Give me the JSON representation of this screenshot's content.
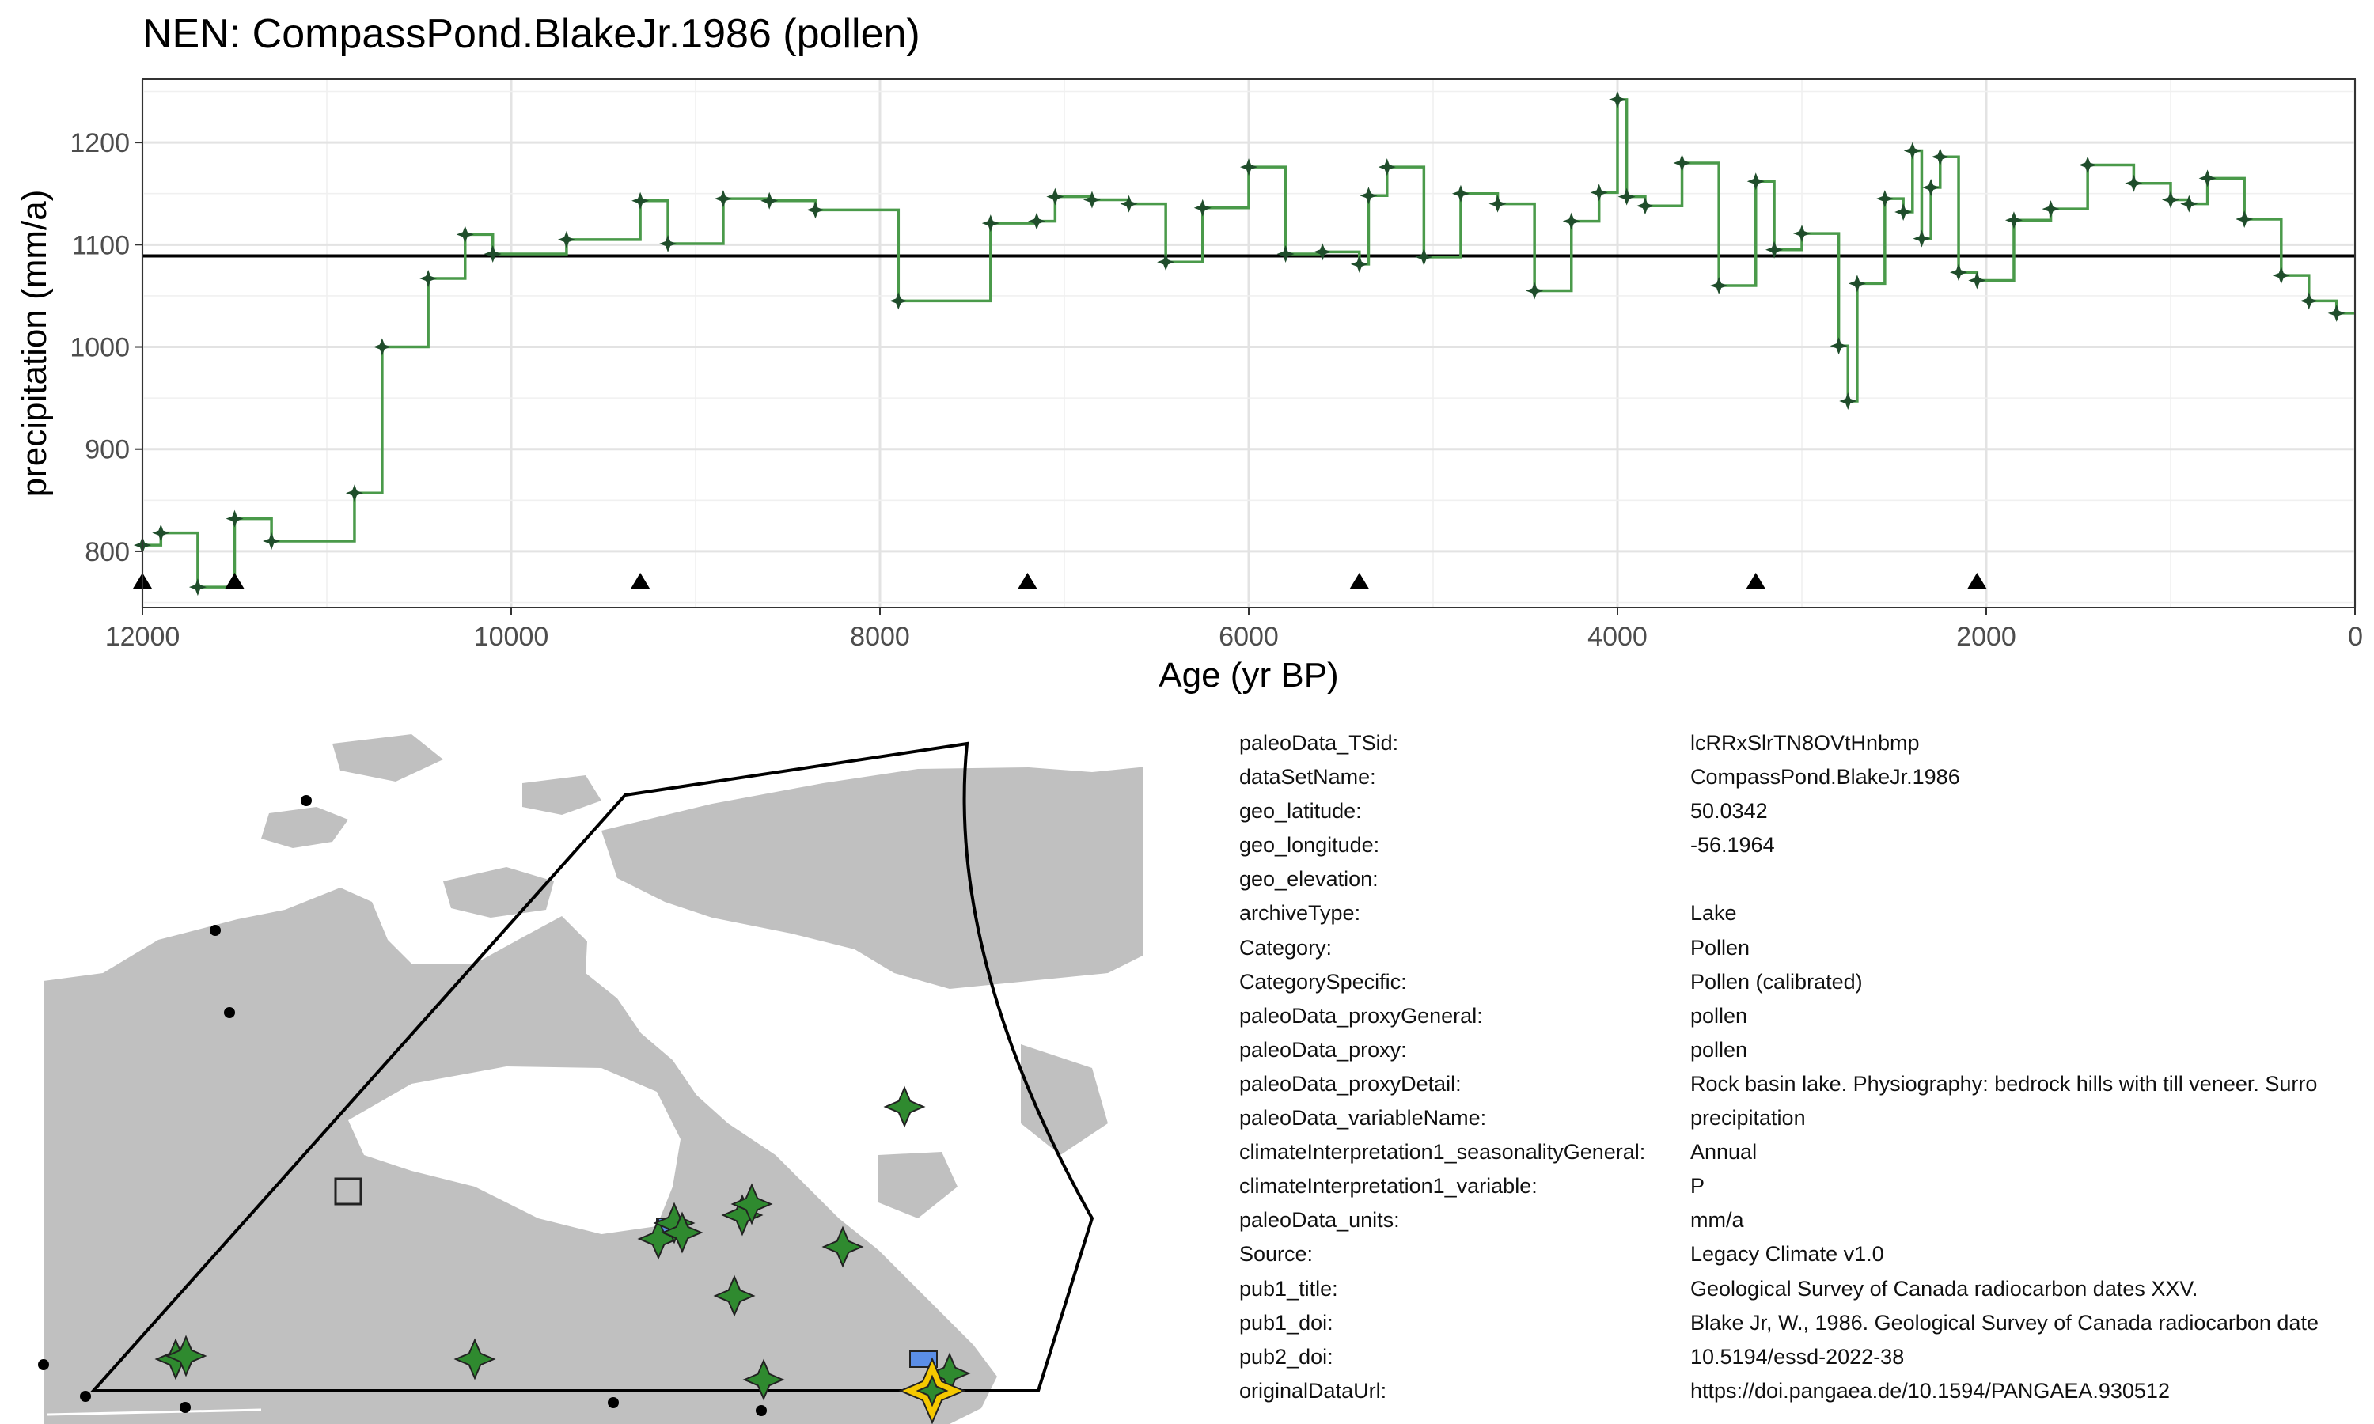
{
  "chart_data": {
    "type": "line",
    "title": "NEN: CompassPond.BlakeJr.1986 (pollen)",
    "xlabel": "Age (yr BP)",
    "ylabel": "precipitation (mm/a)",
    "xlim": [
      12000,
      0
    ],
    "ylim": [
      745,
      1262
    ],
    "x_reversed": true,
    "x_ticks": [
      12000,
      10000,
      8000,
      6000,
      4000,
      2000,
      0
    ],
    "y_ticks": [
      800,
      900,
      1000,
      1100,
      1200
    ],
    "grid": true,
    "step": true,
    "reference_line": 1089,
    "series": [
      {
        "color": "#4a9a4a",
        "marker_color": "#1f4d2b",
        "x": [
          12000,
          11900,
          11700,
          11500,
          11300,
          10850,
          10700,
          10450,
          10250,
          10100,
          9700,
          9300,
          9150,
          8850,
          8600,
          8350,
          7900,
          7400,
          7150,
          7050,
          6850,
          6650,
          6450,
          6250,
          6000,
          5800,
          5600,
          5400,
          5350,
          5250,
          5050,
          4850,
          4650,
          4450,
          4250,
          4100,
          4000,
          3950,
          3850,
          3650,
          3450,
          3250,
          3150,
          3000,
          2800,
          2750,
          2700,
          2550,
          2450,
          2400,
          2350,
          2300,
          2250,
          2150,
          2050,
          1850,
          1650,
          1450,
          1200,
          1000,
          900,
          800,
          600,
          400,
          250,
          100,
          0
        ],
        "y": [
          806,
          818,
          765,
          832,
          810,
          857,
          1000,
          1067,
          1110,
          1091,
          1105,
          1143,
          1101,
          1145,
          1143,
          1134,
          1045,
          1121,
          1123,
          1147,
          1144,
          1140,
          1083,
          1136,
          1176,
          1091,
          1093,
          1081,
          1148,
          1176,
          1088,
          1150,
          1140,
          1055,
          1123,
          1151,
          1242,
          1147,
          1138,
          1180,
          1060,
          1162,
          1095,
          1111,
          1001,
          947,
          1062,
          1145,
          1132,
          1192,
          1106,
          1156,
          1186,
          1073,
          1065,
          1124,
          1135,
          1178,
          1160,
          1144,
          1140,
          1165,
          1125,
          1070,
          1045,
          1033,
          1033
        ]
      }
    ],
    "triangle_markers_x": [
      12000,
      11500,
      9300,
      7200,
      5400,
      3250,
      2050
    ]
  },
  "map": {
    "land_color": "#c0c0c0",
    "star_color": "#2f8a2f",
    "highlight_color": "#f5c800",
    "square_color": "#5b8ee6"
  },
  "metadata": [
    {
      "key": "paleoData_TSid:",
      "value": "lcRRxSlrTN8OVtHnbmp"
    },
    {
      "key": "dataSetName:",
      "value": "CompassPond.BlakeJr.1986"
    },
    {
      "key": "geo_latitude:",
      "value": "50.0342"
    },
    {
      "key": "geo_longitude:",
      "value": "-56.1964"
    },
    {
      "key": "geo_elevation:",
      "value": ""
    },
    {
      "key": "archiveType:",
      "value": "Lake"
    },
    {
      "key": "Category:",
      "value": "Pollen"
    },
    {
      "key": "CategorySpecific:",
      "value": "Pollen (calibrated)"
    },
    {
      "key": "paleoData_proxyGeneral:",
      "value": "pollen"
    },
    {
      "key": "paleoData_proxy:",
      "value": "pollen"
    },
    {
      "key": "paleoData_proxyDetail:",
      "value": "Rock basin lake. Physiography: bedrock hills with till veneer. Surro"
    },
    {
      "key": "paleoData_variableName:",
      "value": "precipitation"
    },
    {
      "key": "climateInterpretation1_seasonalityGeneral:",
      "value": "Annual"
    },
    {
      "key": "climateInterpretation1_variable:",
      "value": "P"
    },
    {
      "key": "paleoData_units:",
      "value": "mm/a"
    },
    {
      "key": "Source:",
      "value": "Legacy Climate v1.0"
    },
    {
      "key": "pub1_title:",
      "value": "Geological Survey of Canada radiocarbon dates XXV."
    },
    {
      "key": "pub1_doi:",
      "value": "Blake Jr, W., 1986. Geological Survey of Canada radiocarbon date"
    },
    {
      "key": "pub2_doi:",
      "value": "10.5194/essd-2022-38"
    },
    {
      "key": "originalDataUrl:",
      "value": "https://doi.pangaea.de/10.1594/PANGAEA.930512"
    }
  ]
}
